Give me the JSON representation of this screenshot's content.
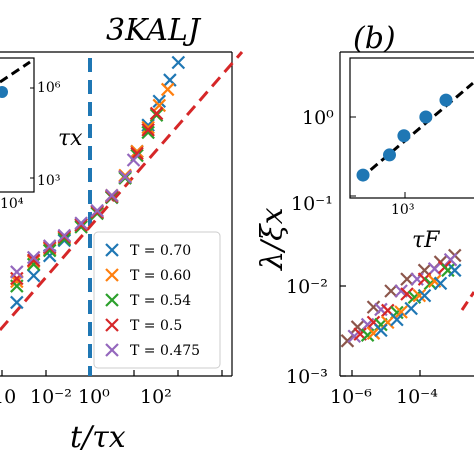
{
  "chart_data": [
    {
      "type": "scatter",
      "panel": "a",
      "title": "3KALJ",
      "xlabel": "t/τx",
      "x_ticks": [
        "10",
        "10⁻²",
        "10⁰",
        "10²"
      ],
      "x_log": true,
      "xlim": [
        5e-05,
        10000
      ],
      "y_log": true,
      "ylim": [
        0.001,
        1
      ],
      "vline_x": 1,
      "reference_lines": [
        {
          "name": "",
          "color": "#d62728",
          "style": "dashed",
          "slope": 0.5,
          "points": [
            [
              0.0001,
              0.003
            ],
            [
              3000,
              1.0
            ]
          ]
        }
      ],
      "legend": {
        "placement": "lower-right",
        "entries": [
          {
            "label": "T = 0.70",
            "color": "#1f77b4"
          },
          {
            "label": "T = 0.60",
            "color": "#ff7f0e"
          },
          {
            "label": "T = 0.54",
            "color": "#2ca02c"
          },
          {
            "label": "T = 0.5",
            "color": "#d62728"
          },
          {
            "label": "T = 0.475",
            "color": "#9467bd"
          }
        ]
      },
      "series": [
        {
          "color": "#1f77b4",
          "points": [
            [
              0.0002,
              0.0048
            ],
            [
              0.0008,
              0.0085
            ],
            [
              0.003,
              0.013
            ],
            [
              0.01,
              0.018
            ],
            [
              0.04,
              0.025
            ],
            [
              0.15,
              0.033
            ],
            [
              0.5,
              0.045
            ],
            [
              1.5,
              0.07
            ],
            [
              4,
              0.12
            ],
            [
              10,
              0.21
            ],
            [
              25,
              0.35
            ],
            [
              60,
              0.55
            ],
            [
              120,
              0.8
            ]
          ]
        },
        {
          "color": "#ff7f0e",
          "points": [
            [
              0.0002,
              0.0075
            ],
            [
              0.0008,
              0.0115
            ],
            [
              0.003,
              0.015
            ],
            [
              0.01,
              0.019
            ],
            [
              0.04,
              0.025
            ],
            [
              0.15,
              0.033
            ],
            [
              0.5,
              0.047
            ],
            [
              1.5,
              0.072
            ],
            [
              4,
              0.12
            ],
            [
              10,
              0.2
            ],
            [
              25,
              0.32
            ],
            [
              50,
              0.45
            ]
          ]
        },
        {
          "color": "#2ca02c",
          "points": [
            [
              0.0002,
              0.0068
            ],
            [
              0.0008,
              0.0108
            ],
            [
              0.003,
              0.0145
            ],
            [
              0.01,
              0.0185
            ],
            [
              0.04,
              0.024
            ],
            [
              0.15,
              0.032
            ],
            [
              0.5,
              0.045
            ],
            [
              1.5,
              0.068
            ],
            [
              4,
              0.11
            ],
            [
              10,
              0.18
            ],
            [
              20,
              0.26
            ]
          ]
        },
        {
          "color": "#d62728",
          "points": [
            [
              0.0002,
              0.008
            ],
            [
              0.0008,
              0.0118
            ],
            [
              0.003,
              0.0155
            ],
            [
              0.01,
              0.0195
            ],
            [
              0.04,
              0.025
            ],
            [
              0.15,
              0.033
            ],
            [
              0.5,
              0.046
            ],
            [
              1.5,
              0.07
            ],
            [
              4,
              0.115
            ],
            [
              10,
              0.19
            ],
            [
              20,
              0.27
            ]
          ]
        },
        {
          "color": "#9467bd",
          "points": [
            [
              0.0002,
              0.0092
            ],
            [
              0.0008,
              0.0125
            ],
            [
              0.003,
              0.016
            ],
            [
              0.01,
              0.02
            ],
            [
              0.04,
              0.026
            ],
            [
              0.15,
              0.034
            ],
            [
              0.5,
              0.047
            ],
            [
              1.5,
              0.07
            ],
            [
              3,
              0.1
            ]
          ]
        }
      ]
    },
    {
      "type": "scatter",
      "panel": "a-inset",
      "ylabel": "τx",
      "x_ticks": [
        "10⁴"
      ],
      "y_ticks": [
        "10⁶",
        "10³"
      ],
      "x_log": true,
      "y_log": true,
      "reference_lines": [
        {
          "name": "",
          "color": "#000000",
          "style": "dashed"
        }
      ],
      "series": [
        {
          "color": "#1f77b4",
          "points": [
            [
              600,
              800000
            ]
          ]
        }
      ]
    },
    {
      "type": "scatter",
      "panel": "b",
      "panel_label": "(b)",
      "ylabel": "λ/ξx",
      "y_ticks": [
        "10⁻²",
        "10⁻³"
      ],
      "x_ticks": [
        "10⁻⁶",
        "10⁻⁴"
      ],
      "x_log": true,
      "y_log": true,
      "xlim": [
        3e-07,
        0.003
      ],
      "ylim": [
        0.001,
        0.06
      ],
      "reference_lines": [
        {
          "name": "",
          "color": "#d62728",
          "style": "dashed"
        }
      ],
      "series": [
        {
          "color": "#8c564b",
          "points": [
            [
              5e-07,
              0.0028
            ],
            [
              1e-06,
              0.0042
            ],
            [
              3e-06,
              0.0075
            ],
            [
              1e-05,
              0.012
            ],
            [
              3e-05,
              0.017
            ],
            [
              0.0001,
              0.022
            ],
            [
              0.0003,
              0.028
            ],
            [
              0.0008,
              0.034
            ]
          ]
        },
        {
          "color": "#9467bd",
          "points": [
            [
              8e-07,
              0.0032
            ],
            [
              2e-06,
              0.0045
            ],
            [
              5e-06,
              0.007
            ],
            [
              2e-05,
              0.012
            ],
            [
              6e-05,
              0.017
            ],
            [
              0.0002,
              0.023
            ],
            [
              0.0006,
              0.03
            ]
          ]
        },
        {
          "color": "#d62728",
          "points": [
            [
              1.2e-06,
              0.0034
            ],
            [
              3e-06,
              0.0048
            ],
            [
              8e-06,
              0.0068
            ],
            [
              3e-05,
              0.011
            ],
            [
              0.0001,
              0.017
            ],
            [
              0.0004,
              0.024
            ]
          ]
        },
        {
          "color": "#2ca02c",
          "points": [
            [
              2e-06,
              0.0033
            ],
            [
              5e-06,
              0.0045
            ],
            [
              1.5e-05,
              0.0064
            ],
            [
              5e-05,
              0.01
            ],
            [
              0.00015,
              0.015
            ],
            [
              0.0005,
              0.022
            ]
          ]
        },
        {
          "color": "#ff7f0e",
          "points": [
            [
              3e-06,
              0.0035
            ],
            [
              8e-06,
              0.0048
            ],
            [
              2e-05,
              0.0065
            ],
            [
              7e-05,
              0.0105
            ],
            [
              0.0002,
              0.016
            ]
          ]
        },
        {
          "color": "#1f77b4",
          "points": [
            [
              5e-06,
              0.0038
            ],
            [
              1.5e-05,
              0.0052
            ],
            [
              4e-05,
              0.0072
            ],
            [
              0.0001,
              0.0105
            ],
            [
              0.0003,
              0.015
            ],
            [
              0.0008,
              0.022
            ]
          ]
        }
      ]
    },
    {
      "type": "scatter",
      "panel": "b-inset",
      "xlabel": "τF",
      "y_ticks": [
        "10⁰",
        "10⁻¹"
      ],
      "x_ticks": [
        "10³"
      ],
      "x_log": true,
      "y_log": true,
      "xlim": [
        100,
        20000
      ],
      "ylim": [
        0.08,
        8
      ],
      "reference_lines": [
        {
          "name": "",
          "color": "#000000",
          "style": "dashed",
          "points": [
            [
              150,
              0.15
            ],
            [
              15000,
              3.5
            ]
          ]
        }
      ],
      "series": [
        {
          "color": "#1f77b4",
          "points": [
            [
              170,
              0.17
            ],
            [
              500,
              0.33
            ],
            [
              900,
              0.62
            ],
            [
              2200,
              1.15
            ],
            [
              5000,
              2.0
            ]
          ]
        }
      ]
    }
  ],
  "labels": {
    "title_a": "3KALJ",
    "panel_b": "(b)",
    "xlabel_a": "t/τx",
    "ylabel_b": "λ/ξx",
    "inset_a_ylabel": "τx",
    "inset_b_xlabel": "τF"
  }
}
